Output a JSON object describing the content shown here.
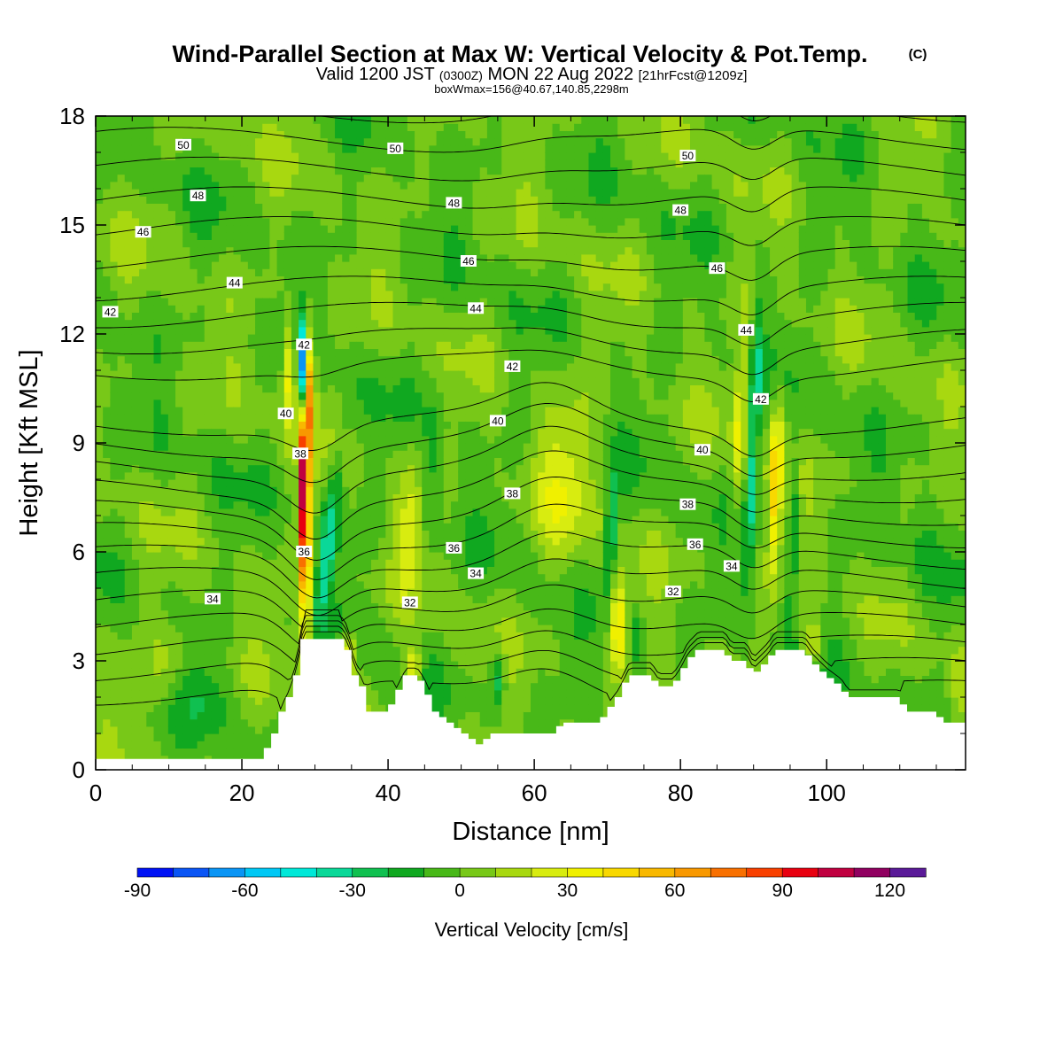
{
  "header": {
    "title": "Wind-Parallel Section at Max W: Vertical Velocity & Pot.Temp.",
    "copyright": "(C)",
    "valid_prefix": "Valid 1200 JST",
    "valid_utc": "(0300Z)",
    "valid_date": "MON 22 Aug 2022",
    "forecast": "[21hrFcst@1209z]",
    "box_info": "boxWmax=156@40.67,140.85,2298m"
  },
  "chart_data": {
    "type": "heatmap",
    "title": "Wind-Parallel Section at Max W: Vertical Velocity & Pot.Temp.",
    "xlabel": "Distance [nm]",
    "ylabel": "Height [Kft MSL]",
    "xlim": [
      0,
      119
    ],
    "ylim": [
      0,
      18
    ],
    "x_ticks": [
      "0",
      "20",
      "40",
      "60",
      "80",
      "100"
    ],
    "y_ticks": [
      "0",
      "3",
      "6",
      "9",
      "12",
      "15",
      "18"
    ],
    "colorbar": {
      "label": "Vertical Velocity [cm/s]",
      "min": -90,
      "max": 130,
      "step": 10,
      "tick_labels": [
        "-90",
        "-60",
        "-30",
        "0",
        "30",
        "60",
        "90",
        "120"
      ],
      "colors": [
        "#0012f5",
        "#0a55f5",
        "#0a95f5",
        "#00c8f5",
        "#00e8d8",
        "#0ad898",
        "#10c050",
        "#10a820",
        "#48b818",
        "#78c818",
        "#a8d810",
        "#d8ec10",
        "#f0f000",
        "#f8d800",
        "#f8b800",
        "#f89800",
        "#f87000",
        "#f84000",
        "#e80010",
        "#c00040",
        "#900060",
        "#5a1a98"
      ]
    },
    "theta_contour_labels": [
      {
        "value": "50",
        "x": 12,
        "y": 17.2
      },
      {
        "value": "50",
        "x": 41,
        "y": 17.1
      },
      {
        "value": "50",
        "x": 81,
        "y": 16.9
      },
      {
        "value": "48",
        "x": 14,
        "y": 15.8
      },
      {
        "value": "48",
        "x": 49,
        "y": 15.6
      },
      {
        "value": "48",
        "x": 80,
        "y": 15.4
      },
      {
        "value": "46",
        "x": 6.5,
        "y": 14.8
      },
      {
        "value": "46",
        "x": 51,
        "y": 14.0
      },
      {
        "value": "46",
        "x": 85,
        "y": 13.8
      },
      {
        "value": "44",
        "x": 19,
        "y": 13.4
      },
      {
        "value": "44",
        "x": 52,
        "y": 12.7
      },
      {
        "value": "44",
        "x": 89,
        "y": 12.1
      },
      {
        "value": "42",
        "x": 2,
        "y": 12.6
      },
      {
        "value": "42",
        "x": 28.5,
        "y": 11.7
      },
      {
        "value": "42",
        "x": 57,
        "y": 11.1
      },
      {
        "value": "42",
        "x": 91,
        "y": 10.2
      },
      {
        "value": "40",
        "x": 26,
        "y": 9.8
      },
      {
        "value": "40",
        "x": 55,
        "y": 9.6
      },
      {
        "value": "40",
        "x": 83,
        "y": 8.8
      },
      {
        "value": "38",
        "x": 28,
        "y": 8.7
      },
      {
        "value": "38",
        "x": 57,
        "y": 7.6
      },
      {
        "value": "38",
        "x": 81,
        "y": 7.3
      },
      {
        "value": "36",
        "x": 28.5,
        "y": 6.0
      },
      {
        "value": "36",
        "x": 49,
        "y": 6.1
      },
      {
        "value": "36",
        "x": 82,
        "y": 6.2
      },
      {
        "value": "34",
        "x": 16,
        "y": 4.7
      },
      {
        "value": "34",
        "x": 52,
        "y": 5.4
      },
      {
        "value": "34",
        "x": 87,
        "y": 5.6
      },
      {
        "value": "32",
        "x": 43,
        "y": 4.6
      },
      {
        "value": "32",
        "x": 79,
        "y": 4.9
      }
    ],
    "terrain_height_kft": [
      {
        "x": 0,
        "h": 0.3
      },
      {
        "x": 22.5,
        "h": 0.3
      },
      {
        "x": 23.5,
        "h": 0.6
      },
      {
        "x": 24.5,
        "h": 1.0
      },
      {
        "x": 25.5,
        "h": 1.6
      },
      {
        "x": 26.5,
        "h": 2.0
      },
      {
        "x": 27.5,
        "h": 2.6
      },
      {
        "x": 28.5,
        "h": 3.6
      },
      {
        "x": 33.5,
        "h": 3.6
      },
      {
        "x": 34.5,
        "h": 3.3
      },
      {
        "x": 35.5,
        "h": 2.6
      },
      {
        "x": 36.5,
        "h": 2.3
      },
      {
        "x": 37.5,
        "h": 1.6
      },
      {
        "x": 40,
        "h": 1.6
      },
      {
        "x": 41,
        "h": 2.0
      },
      {
        "x": 42.5,
        "h": 2.6
      },
      {
        "x": 44,
        "h": 2.6
      },
      {
        "x": 45,
        "h": 2.3
      },
      {
        "x": 46.5,
        "h": 1.6
      },
      {
        "x": 48.5,
        "h": 1.3
      },
      {
        "x": 50.5,
        "h": 1.0
      },
      {
        "x": 52.5,
        "h": 0.7
      },
      {
        "x": 54.5,
        "h": 1.0
      },
      {
        "x": 62.5,
        "h": 1.0
      },
      {
        "x": 64,
        "h": 1.3
      },
      {
        "x": 69,
        "h": 1.3
      },
      {
        "x": 70,
        "h": 1.6
      },
      {
        "x": 71.5,
        "h": 2.0
      },
      {
        "x": 73,
        "h": 2.6
      },
      {
        "x": 76,
        "h": 2.6
      },
      {
        "x": 77,
        "h": 2.3
      },
      {
        "x": 79,
        "h": 2.3
      },
      {
        "x": 80,
        "h": 2.6
      },
      {
        "x": 81,
        "h": 3.0
      },
      {
        "x": 82.5,
        "h": 3.3
      },
      {
        "x": 86,
        "h": 3.3
      },
      {
        "x": 87,
        "h": 3.0
      },
      {
        "x": 89,
        "h": 3.0
      },
      {
        "x": 90,
        "h": 2.6
      },
      {
        "x": 92,
        "h": 3.0
      },
      {
        "x": 93,
        "h": 3.3
      },
      {
        "x": 97,
        "h": 3.3
      },
      {
        "x": 98,
        "h": 3.0
      },
      {
        "x": 100,
        "h": 2.6
      },
      {
        "x": 102,
        "h": 2.3
      },
      {
        "x": 103,
        "h": 2.0
      },
      {
        "x": 110,
        "h": 2.0
      },
      {
        "x": 111,
        "h": 1.6
      },
      {
        "x": 115,
        "h": 1.6
      },
      {
        "x": 116,
        "h": 1.3
      },
      {
        "x": 119,
        "h": 1.3
      }
    ],
    "vertical_velocity_features": [
      {
        "x": 28.5,
        "y": 8.0,
        "sx": 0.45,
        "sy": 2.8,
        "tilt": 0.03,
        "value": 110
      },
      {
        "x": 29.0,
        "y": 6.5,
        "sx": 0.8,
        "sy": 4.5,
        "tilt": 0.03,
        "value": 45
      },
      {
        "x": 28.2,
        "y": 11.0,
        "sx": 0.5,
        "sy": 1.3,
        "tilt": 0.0,
        "value": -80
      },
      {
        "x": 29.5,
        "y": 10.5,
        "sx": 0.6,
        "sy": 1.5,
        "tilt": 0.0,
        "value": 50
      },
      {
        "x": 32.0,
        "y": 6.5,
        "sx": 1.2,
        "sy": 2.5,
        "tilt": 0.6,
        "value": -35
      },
      {
        "x": 34.5,
        "y": 3.2,
        "sx": 1.0,
        "sy": 0.6,
        "tilt": 0.0,
        "value": 40
      },
      {
        "x": 26.5,
        "y": 11.0,
        "sx": 0.8,
        "sy": 1.4,
        "tilt": 0.0,
        "value": 35
      },
      {
        "x": 43.5,
        "y": 2.8,
        "sx": 1.0,
        "sy": 0.5,
        "tilt": 0.0,
        "value": 40
      },
      {
        "x": 43.0,
        "y": 7.0,
        "sx": 2.0,
        "sy": 2.0,
        "tilt": 0.3,
        "value": 20
      },
      {
        "x": 46.0,
        "y": 8.5,
        "sx": 1.5,
        "sy": 2.0,
        "tilt": 0.3,
        "value": -15
      },
      {
        "x": 55.0,
        "y": 2.5,
        "sx": 1.0,
        "sy": 0.8,
        "tilt": 0.0,
        "value": -30
      },
      {
        "x": 64.0,
        "y": 8.0,
        "sx": 4.0,
        "sy": 2.5,
        "tilt": 0.2,
        "value": 20
      },
      {
        "x": 70.5,
        "y": 6.5,
        "sx": 0.8,
        "sy": 1.5,
        "tilt": 0.2,
        "value": -40
      },
      {
        "x": 71.5,
        "y": 4.0,
        "sx": 1.0,
        "sy": 1.2,
        "tilt": 0.0,
        "value": 45
      },
      {
        "x": 74.0,
        "y": 3.5,
        "sx": 1.0,
        "sy": 0.8,
        "tilt": 0.0,
        "value": -20
      },
      {
        "x": 88.0,
        "y": 9.5,
        "sx": 0.8,
        "sy": 3.0,
        "tilt": 0.25,
        "value": 25
      },
      {
        "x": 90.0,
        "y": 9.0,
        "sx": 0.7,
        "sy": 3.5,
        "tilt": 0.2,
        "value": -40
      },
      {
        "x": 93.0,
        "y": 8.0,
        "sx": 0.9,
        "sy": 2.5,
        "tilt": 0.15,
        "value": 50
      },
      {
        "x": 95.5,
        "y": 6.5,
        "sx": 0.7,
        "sy": 2.5,
        "tilt": 0.2,
        "value": -25
      },
      {
        "x": 98.0,
        "y": 3.5,
        "sx": 1.5,
        "sy": 0.6,
        "tilt": 0.0,
        "value": 30
      },
      {
        "x": 10.0,
        "y": 3.0,
        "sx": 2.5,
        "sy": 1.0,
        "tilt": 0.0,
        "value": 15
      },
      {
        "x": 15.0,
        "y": 2.0,
        "sx": 3.0,
        "sy": 1.0,
        "tilt": 0.0,
        "value": -15
      },
      {
        "x": 118.0,
        "y": 2.5,
        "sx": 1.5,
        "sy": 1.0,
        "tilt": 0.0,
        "value": 15
      },
      {
        "x": 113.0,
        "y": 5.5,
        "sx": 2.0,
        "sy": 2.0,
        "tilt": 0.0,
        "value": -12
      }
    ]
  }
}
